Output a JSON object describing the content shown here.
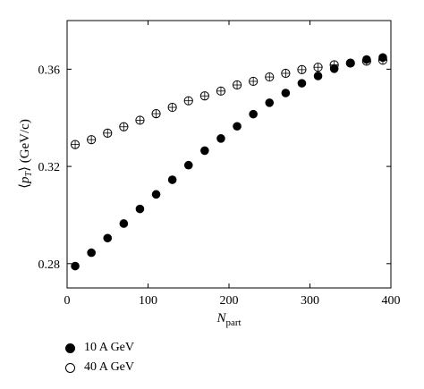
{
  "chart_data": {
    "type": "scatter",
    "xlabel_main": "N",
    "xlabel_sub": "part",
    "ylabel_parts": [
      "⟨",
      "p",
      "T",
      "⟩ (GeV/c)"
    ],
    "xlim": [
      0,
      400
    ],
    "ylim": [
      0.27,
      0.38
    ],
    "xticks": [
      0,
      100,
      200,
      300,
      400
    ],
    "yticks": [
      0.28,
      0.32,
      0.36
    ],
    "xtick_labels": [
      "0",
      "100",
      "200",
      "300",
      "400"
    ],
    "ytick_labels": [
      "0.28",
      "0.32",
      "0.36"
    ],
    "legend_placement": "bottom-left, below plot",
    "series": [
      {
        "name": "10 A GeV",
        "marker": "filled-circle",
        "x": [
          10,
          30,
          50,
          70,
          90,
          110,
          130,
          150,
          170,
          190,
          210,
          230,
          250,
          270,
          290,
          310,
          330,
          350,
          370,
          390
        ],
        "y": [
          0.279,
          0.2845,
          0.2905,
          0.2965,
          0.3025,
          0.3085,
          0.3145,
          0.3205,
          0.3265,
          0.3315,
          0.3365,
          0.3415,
          0.3462,
          0.3502,
          0.3542,
          0.3572,
          0.3602,
          0.3625,
          0.364,
          0.3648
        ]
      },
      {
        "name": "40 A GeV",
        "marker": "open-circle-cross",
        "x": [
          10,
          30,
          50,
          70,
          90,
          110,
          130,
          150,
          170,
          190,
          210,
          230,
          250,
          270,
          290,
          310,
          330,
          350,
          370,
          390
        ],
        "y": [
          0.329,
          0.331,
          0.3337,
          0.3363,
          0.339,
          0.3417,
          0.3443,
          0.347,
          0.349,
          0.351,
          0.3535,
          0.355,
          0.3568,
          0.3583,
          0.3598,
          0.3608,
          0.3618,
          0.3625,
          0.3633,
          0.3637
        ]
      }
    ]
  }
}
